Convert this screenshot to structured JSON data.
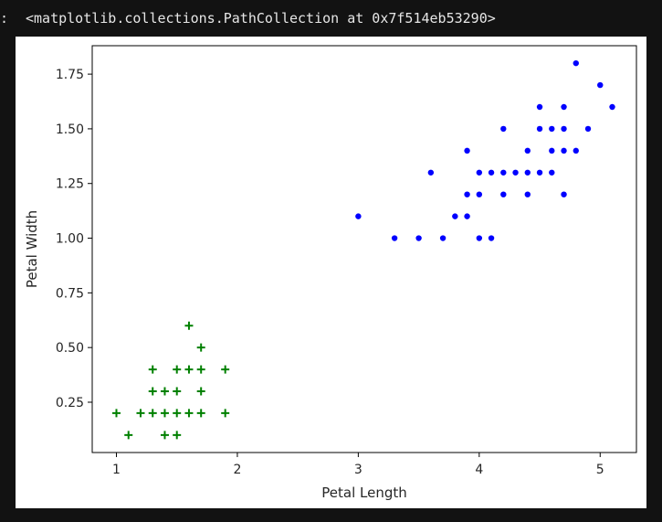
{
  "output": {
    "prompt": ":",
    "text": "<matplotlib.collections.PathCollection at 0x7f514eb53290>"
  },
  "chart_data": {
    "type": "scatter",
    "xlabel": "Petal Length",
    "ylabel": "Petal Width",
    "xlim": [
      0.8,
      5.3
    ],
    "ylim": [
      0.02,
      1.88
    ],
    "xticks": [
      1,
      2,
      3,
      4,
      5
    ],
    "xtick_labels": [
      "1",
      "2",
      "3",
      "4",
      "5"
    ],
    "yticks": [
      0.25,
      0.5,
      0.75,
      1.0,
      1.25,
      1.5,
      1.75
    ],
    "ytick_labels": [
      "0.25",
      "0.50",
      "0.75",
      "1.00",
      "1.25",
      "1.50",
      "1.75"
    ],
    "grid": false,
    "series": [
      {
        "marker": "plus",
        "color": "#008000",
        "points": [
          [
            1.0,
            0.2
          ],
          [
            1.1,
            0.1
          ],
          [
            1.2,
            0.2
          ],
          [
            1.3,
            0.2
          ],
          [
            1.3,
            0.3
          ],
          [
            1.3,
            0.4
          ],
          [
            1.4,
            0.1
          ],
          [
            1.4,
            0.2
          ],
          [
            1.4,
            0.3
          ],
          [
            1.5,
            0.1
          ],
          [
            1.5,
            0.2
          ],
          [
            1.5,
            0.3
          ],
          [
            1.5,
            0.4
          ],
          [
            1.6,
            0.2
          ],
          [
            1.6,
            0.4
          ],
          [
            1.6,
            0.6
          ],
          [
            1.7,
            0.2
          ],
          [
            1.7,
            0.3
          ],
          [
            1.7,
            0.4
          ],
          [
            1.7,
            0.5
          ],
          [
            1.9,
            0.2
          ],
          [
            1.9,
            0.4
          ]
        ]
      },
      {
        "marker": "circle",
        "color": "#0000ff",
        "points": [
          [
            3.0,
            1.1
          ],
          [
            3.3,
            1.0
          ],
          [
            3.5,
            1.0
          ],
          [
            3.6,
            1.3
          ],
          [
            3.7,
            1.0
          ],
          [
            3.8,
            1.1
          ],
          [
            3.9,
            1.1
          ],
          [
            3.9,
            1.2
          ],
          [
            3.9,
            1.4
          ],
          [
            4.0,
            1.0
          ],
          [
            4.0,
            1.2
          ],
          [
            4.0,
            1.3
          ],
          [
            4.1,
            1.0
          ],
          [
            4.1,
            1.3
          ],
          [
            4.2,
            1.2
          ],
          [
            4.2,
            1.3
          ],
          [
            4.2,
            1.5
          ],
          [
            4.3,
            1.3
          ],
          [
            4.4,
            1.2
          ],
          [
            4.4,
            1.3
          ],
          [
            4.4,
            1.4
          ],
          [
            4.5,
            1.3
          ],
          [
            4.5,
            1.5
          ],
          [
            4.5,
            1.6
          ],
          [
            4.6,
            1.3
          ],
          [
            4.6,
            1.4
          ],
          [
            4.6,
            1.5
          ],
          [
            4.7,
            1.2
          ],
          [
            4.7,
            1.4
          ],
          [
            4.7,
            1.5
          ],
          [
            4.7,
            1.6
          ],
          [
            4.8,
            1.4
          ],
          [
            4.8,
            1.8
          ],
          [
            4.9,
            1.5
          ],
          [
            5.0,
            1.7
          ],
          [
            5.1,
            1.6
          ]
        ]
      }
    ]
  }
}
